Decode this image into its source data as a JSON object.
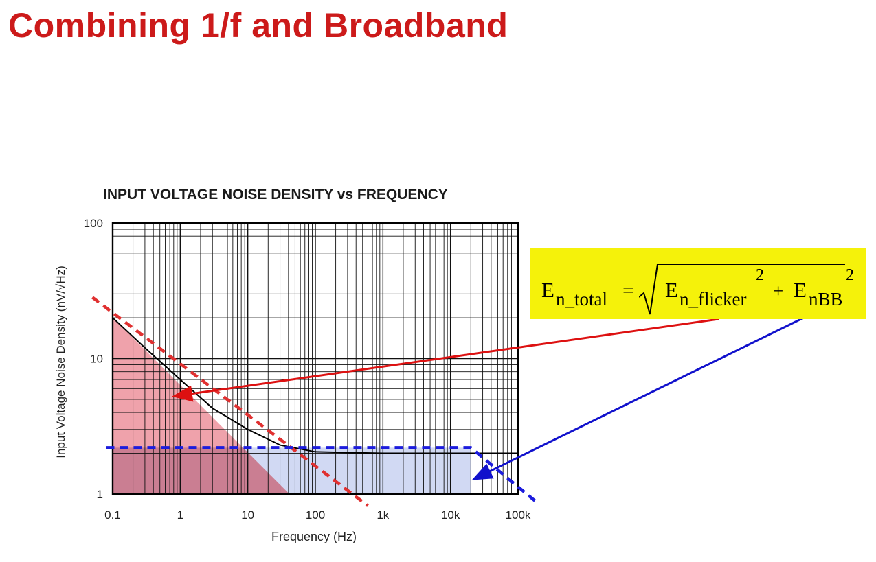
{
  "slide": {
    "title": "Combining 1/f and Broadband"
  },
  "chart_data": {
    "type": "line",
    "title": "INPUT VOLTAGE NOISE DENSITY vs FREQUENCY",
    "xlabel": "Frequency (Hz)",
    "ylabel": "Input Voltage Noise Density (nV/√Hz)",
    "xscale": "log",
    "yscale": "log",
    "xlim": [
      0.1,
      100000
    ],
    "ylim": [
      1,
      100
    ],
    "x_ticks": [
      {
        "value": 0.1,
        "label": "0.1"
      },
      {
        "value": 1,
        "label": "1"
      },
      {
        "value": 10,
        "label": "10"
      },
      {
        "value": 100,
        "label": "100"
      },
      {
        "value": 1000,
        "label": "1k"
      },
      {
        "value": 10000,
        "label": "10k"
      },
      {
        "value": 100000,
        "label": "100k"
      }
    ],
    "y_ticks": [
      {
        "value": 1,
        "label": "1"
      },
      {
        "value": 10,
        "label": "10"
      },
      {
        "value": 100,
        "label": "100"
      }
    ],
    "grid": true,
    "series": [
      {
        "x": [
          0.1,
          0.3,
          1,
          3,
          10,
          30,
          100,
          1000,
          10000,
          100000
        ],
        "y": [
          20,
          12,
          7,
          4.3,
          3,
          2.3,
          2.05,
          2.0,
          2.0,
          2.0
        ],
        "color": "#000000"
      },
      {
        "x": [
          0.05,
          0.5
        ],
        "y": [
          28.3,
          9
        ],
        "x_end": 600,
        "y_end": 0.82,
        "color": "#e03030",
        "style": "dashed"
      },
      {
        "x": [
          0.08,
          20000,
          200000
        ],
        "y": [
          2.2,
          2.2,
          0.85
        ],
        "color": "#1c1cdd",
        "style": "dashed"
      }
    ],
    "shaded_regions": [
      {
        "color": "#e87a87",
        "opacity": 0.7
      },
      {
        "color": "#c5d0f0",
        "opacity": 0.8
      }
    ]
  },
  "formula": {
    "E": "E",
    "total_sub": "n_total",
    "equals": "=",
    "flicker_sub": "n_flicker",
    "sup1": "2",
    "plus": "+",
    "bb_sub": "nBB",
    "sup2": "2",
    "bg_color": "#f5f20a"
  },
  "arrows": {
    "flicker_color": "#dd1111",
    "broadband_color": "#1111cc"
  }
}
